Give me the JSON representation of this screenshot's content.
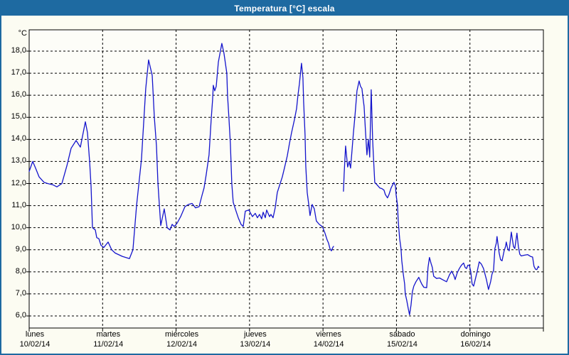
{
  "window": {
    "title": "Temperatura [°C] escala",
    "colors": {
      "titlebar": "#1e6aa1",
      "border": "#1e6aa1",
      "background": "#fcfcf2",
      "plot_background": "#fdfdf8",
      "line": "#1414cc",
      "grid": "#000000",
      "text": "#000000"
    }
  },
  "chart_data": {
    "type": "line",
    "title": "Temperatura [°C] escala",
    "ylabel": "°C",
    "ylim": [
      6.0,
      18.0
    ],
    "y_tick_step": 1.0,
    "y_tick_labels": [
      "18,0",
      "17,0",
      "16,0",
      "15,0",
      "14,0",
      "13,0",
      "12,0",
      "11,0",
      "10,0",
      "9,0",
      "8,0",
      "7,0",
      "6,0"
    ],
    "x_unit": "days_from_start",
    "x_days": [
      {
        "name": "lunes",
        "date": "10/02/14"
      },
      {
        "name": "martes",
        "date": "11/02/14"
      },
      {
        "name": "miércoles",
        "date": "12/02/14"
      },
      {
        "name": "jueves",
        "date": "13/02/14"
      },
      {
        "name": "viernes",
        "date": "14/02/14"
      },
      {
        "name": "sábado",
        "date": "15/02/14"
      },
      {
        "name": "domingo",
        "date": "16/02/14"
      }
    ],
    "grid": "dashed",
    "legend": "none",
    "series": [
      {
        "name": "Temperatura",
        "color": "#1414cc",
        "segments": [
          [
            [
              0.0,
              12.55
            ],
            [
              0.048,
              13.0
            ],
            [
              0.087,
              12.7
            ],
            [
              0.136,
              12.3
            ],
            [
              0.203,
              12.05
            ],
            [
              0.252,
              12.0
            ],
            [
              0.319,
              11.95
            ],
            [
              0.378,
              11.85
            ],
            [
              0.445,
              12.0
            ],
            [
              0.513,
              12.8
            ],
            [
              0.571,
              13.6
            ],
            [
              0.639,
              13.95
            ],
            [
              0.697,
              13.65
            ],
            [
              0.765,
              14.8
            ],
            [
              0.794,
              14.3
            ],
            [
              0.823,
              13.0
            ],
            [
              0.842,
              11.9
            ],
            [
              0.862,
              10.0
            ],
            [
              0.9,
              9.9
            ],
            [
              0.92,
              9.55
            ],
            [
              0.949,
              9.5
            ],
            [
              0.978,
              9.2
            ],
            [
              1.016,
              9.1
            ],
            [
              1.075,
              9.35
            ],
            [
              1.123,
              9.0
            ],
            [
              1.171,
              8.85
            ],
            [
              1.268,
              8.7
            ],
            [
              1.365,
              8.6
            ],
            [
              1.413,
              9.0
            ],
            [
              1.462,
              11.0
            ],
            [
              1.529,
              13.1
            ],
            [
              1.558,
              14.7
            ],
            [
              1.587,
              16.3
            ],
            [
              1.626,
              17.6
            ],
            [
              1.675,
              16.9
            ],
            [
              1.704,
              15.0
            ],
            [
              1.733,
              13.7
            ],
            [
              1.752,
              12.05
            ],
            [
              1.771,
              11.1
            ],
            [
              1.791,
              10.1
            ],
            [
              1.839,
              10.85
            ],
            [
              1.878,
              10.0
            ],
            [
              1.917,
              9.9
            ],
            [
              1.946,
              10.15
            ],
            [
              1.975,
              10.05
            ],
            [
              2.013,
              10.2
            ],
            [
              2.062,
              10.5
            ],
            [
              2.12,
              10.95
            ],
            [
              2.168,
              11.05
            ],
            [
              2.217,
              11.1
            ],
            [
              2.265,
              10.9
            ],
            [
              2.313,
              10.95
            ],
            [
              2.352,
              11.45
            ],
            [
              2.381,
              11.8
            ],
            [
              2.41,
              12.4
            ],
            [
              2.449,
              13.3
            ],
            [
              2.478,
              14.9
            ],
            [
              2.497,
              15.8
            ],
            [
              2.507,
              16.45
            ],
            [
              2.526,
              16.2
            ],
            [
              2.546,
              16.4
            ],
            [
              2.575,
              17.5
            ],
            [
              2.623,
              18.35
            ],
            [
              2.652,
              17.9
            ],
            [
              2.691,
              17.0
            ],
            [
              2.7,
              16.0
            ],
            [
              2.72,
              14.95
            ],
            [
              2.739,
              13.8
            ],
            [
              2.758,
              12.0
            ],
            [
              2.778,
              11.15
            ],
            [
              2.816,
              10.75
            ],
            [
              2.846,
              10.45
            ],
            [
              2.884,
              10.15
            ],
            [
              2.913,
              10.05
            ],
            [
              2.942,
              10.75
            ],
            [
              2.991,
              10.8
            ],
            [
              3.039,
              10.5
            ],
            [
              3.078,
              10.65
            ],
            [
              3.107,
              10.45
            ],
            [
              3.136,
              10.6
            ],
            [
              3.165,
              10.4
            ],
            [
              3.185,
              10.7
            ],
            [
              3.214,
              10.45
            ],
            [
              3.233,
              10.8
            ],
            [
              3.272,
              10.5
            ],
            [
              3.291,
              10.6
            ],
            [
              3.32,
              10.45
            ],
            [
              3.349,
              10.9
            ],
            [
              3.378,
              11.6
            ],
            [
              3.417,
              12.0
            ],
            [
              3.446,
              12.3
            ],
            [
              3.475,
              12.7
            ],
            [
              3.514,
              13.25
            ],
            [
              3.543,
              13.8
            ],
            [
              3.572,
              14.3
            ],
            [
              3.611,
              14.9
            ],
            [
              3.64,
              15.4
            ],
            [
              3.659,
              16.0
            ],
            [
              3.678,
              16.5
            ],
            [
              3.707,
              17.45
            ],
            [
              3.727,
              16.8
            ],
            [
              3.736,
              15.7
            ],
            [
              3.756,
              14.2
            ],
            [
              3.765,
              12.8
            ],
            [
              3.785,
              11.6
            ],
            [
              3.804,
              11.1
            ],
            [
              3.823,
              10.55
            ],
            [
              3.852,
              11.05
            ],
            [
              3.881,
              10.85
            ],
            [
              3.91,
              10.3
            ],
            [
              3.949,
              10.15
            ],
            [
              3.978,
              10.08
            ],
            [
              3.998,
              10.0
            ],
            [
              4.027,
              9.75
            ],
            [
              4.056,
              9.45
            ],
            [
              4.075,
              9.3
            ],
            [
              4.094,
              9.05
            ],
            [
              4.114,
              8.95
            ],
            [
              4.133,
              9.1
            ],
            [
              4.143,
              9.15
            ]
          ],
          [
            [
              4.278,
              11.65
            ],
            [
              4.288,
              12.45
            ],
            [
              4.307,
              13.7
            ],
            [
              4.336,
              12.75
            ],
            [
              4.356,
              13.0
            ],
            [
              4.375,
              12.7
            ],
            [
              4.394,
              13.45
            ],
            [
              4.414,
              14.3
            ],
            [
              4.433,
              15.0
            ],
            [
              4.462,
              16.2
            ],
            [
              4.491,
              16.65
            ],
            [
              4.511,
              16.4
            ],
            [
              4.53,
              16.3
            ],
            [
              4.54,
              16.0
            ],
            [
              4.559,
              15.5
            ],
            [
              4.578,
              14.4
            ],
            [
              4.598,
              13.3
            ],
            [
              4.617,
              14.0
            ],
            [
              4.636,
              13.2
            ],
            [
              4.656,
              16.25
            ],
            [
              4.675,
              14.0
            ],
            [
              4.685,
              13.3
            ],
            [
              4.704,
              12.05
            ],
            [
              4.733,
              11.95
            ],
            [
              4.772,
              11.8
            ],
            [
              4.801,
              11.77
            ],
            [
              4.83,
              11.7
            ],
            [
              4.849,
              11.5
            ],
            [
              4.878,
              11.35
            ],
            [
              4.898,
              11.5
            ],
            [
              4.927,
              11.8
            ],
            [
              4.965,
              12.05
            ],
            [
              4.985,
              11.9
            ],
            [
              4.995,
              11.5
            ],
            [
              5.014,
              11.0
            ],
            [
              5.024,
              10.3
            ],
            [
              5.043,
              9.5
            ],
            [
              5.062,
              9.05
            ],
            [
              5.072,
              8.5
            ],
            [
              5.091,
              7.95
            ],
            [
              5.111,
              7.45
            ],
            [
              5.12,
              7.0
            ],
            [
              5.14,
              6.7
            ],
            [
              5.159,
              6.35
            ],
            [
              5.178,
              6.05
            ],
            [
              5.198,
              6.5
            ],
            [
              5.217,
              7.1
            ],
            [
              5.236,
              7.35
            ],
            [
              5.265,
              7.55
            ],
            [
              5.304,
              7.75
            ],
            [
              5.323,
              7.6
            ],
            [
              5.343,
              7.45
            ],
            [
              5.372,
              7.3
            ],
            [
              5.411,
              7.28
            ],
            [
              5.43,
              8.2
            ],
            [
              5.449,
              8.65
            ],
            [
              5.469,
              8.4
            ],
            [
              5.488,
              8.2
            ],
            [
              5.507,
              7.8
            ],
            [
              5.546,
              7.7
            ],
            [
              5.585,
              7.72
            ],
            [
              5.624,
              7.65
            ],
            [
              5.653,
              7.6
            ],
            [
              5.682,
              7.55
            ],
            [
              5.72,
              7.85
            ],
            [
              5.75,
              8.03
            ],
            [
              5.779,
              7.85
            ],
            [
              5.798,
              7.65
            ],
            [
              5.827,
              7.95
            ],
            [
              5.856,
              8.15
            ],
            [
              5.885,
              8.3
            ],
            [
              5.914,
              8.4
            ],
            [
              5.934,
              8.2
            ],
            [
              5.953,
              8.15
            ],
            [
              5.972,
              8.3
            ],
            [
              5.992,
              8.3
            ],
            [
              6.011,
              8.0
            ],
            [
              6.03,
              7.45
            ],
            [
              6.05,
              7.35
            ],
            [
              6.069,
              7.6
            ],
            [
              6.098,
              8.0
            ],
            [
              6.127,
              8.45
            ],
            [
              6.156,
              8.35
            ],
            [
              6.185,
              8.15
            ],
            [
              6.224,
              7.65
            ],
            [
              6.253,
              7.2
            ],
            [
              6.282,
              7.55
            ],
            [
              6.301,
              7.9
            ],
            [
              6.321,
              8.05
            ],
            [
              6.34,
              9.05
            ],
            [
              6.359,
              9.3
            ],
            [
              6.369,
              9.6
            ],
            [
              6.398,
              8.85
            ],
            [
              6.417,
              8.55
            ],
            [
              6.437,
              8.5
            ],
            [
              6.466,
              8.95
            ],
            [
              6.485,
              9.15
            ],
            [
              6.495,
              9.35
            ],
            [
              6.514,
              9.05
            ],
            [
              6.534,
              8.95
            ],
            [
              6.563,
              9.8
            ],
            [
              6.592,
              9.15
            ],
            [
              6.611,
              9.05
            ],
            [
              6.64,
              9.75
            ],
            [
              6.659,
              9.15
            ],
            [
              6.679,
              8.8
            ],
            [
              6.698,
              8.72
            ],
            [
              6.737,
              8.75
            ],
            [
              6.785,
              8.78
            ],
            [
              6.824,
              8.7
            ],
            [
              6.853,
              8.67
            ],
            [
              6.872,
              8.25
            ],
            [
              6.892,
              8.12
            ],
            [
              6.911,
              8.1
            ],
            [
              6.93,
              8.25
            ],
            [
              6.94,
              8.2
            ]
          ]
        ]
      }
    ]
  }
}
